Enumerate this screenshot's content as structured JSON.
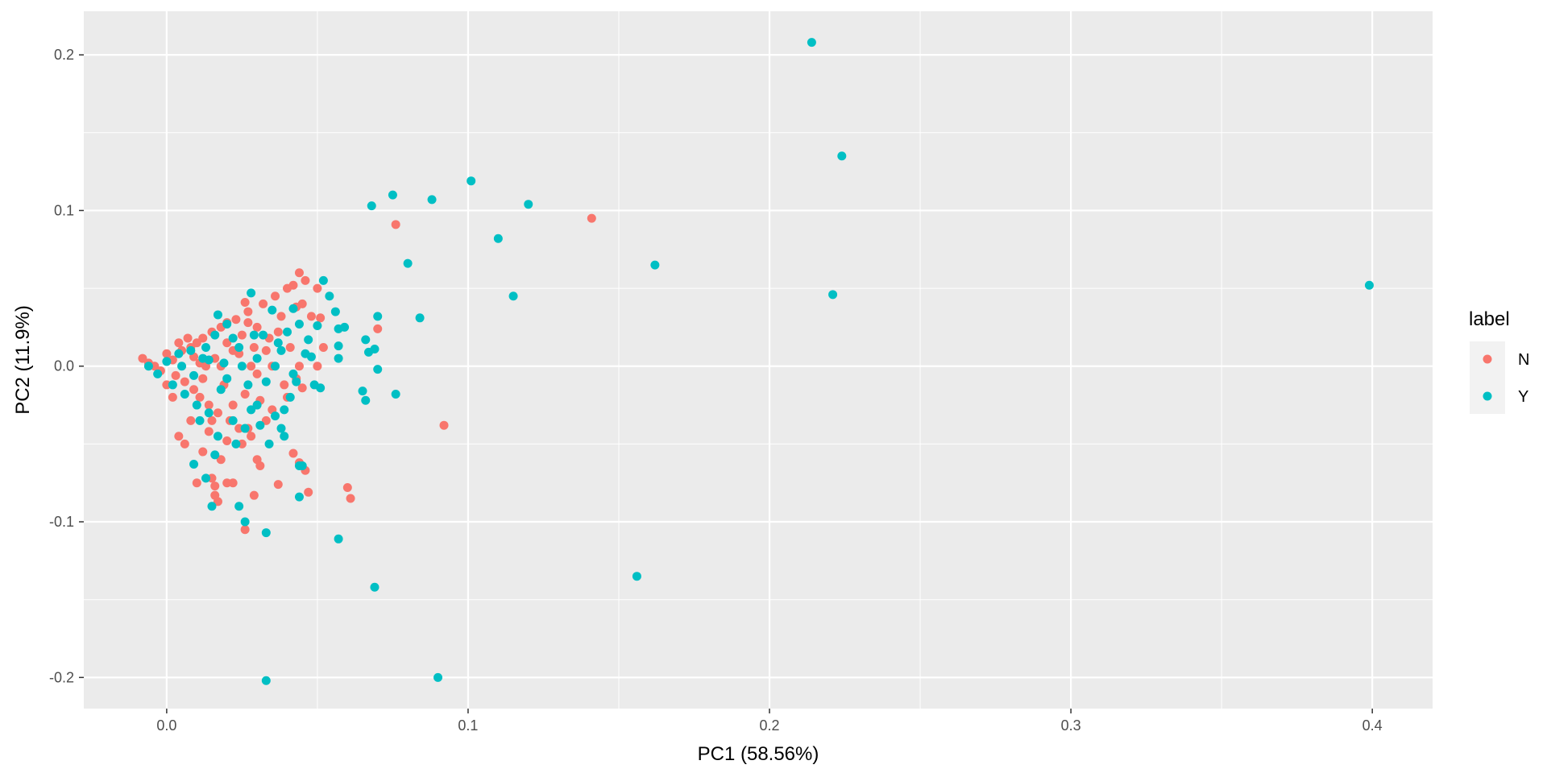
{
  "chart_data": {
    "type": "scatter",
    "xlabel": "PC1 (58.56%)",
    "ylabel": "PC2 (11.9%)",
    "xlim": [
      -0.0275,
      0.42
    ],
    "ylim": [
      -0.22,
      0.228
    ],
    "x_ticks": [
      0.0,
      0.1,
      0.2,
      0.3,
      0.4
    ],
    "x_tick_labels": [
      "0.0",
      "0.1",
      "0.2",
      "0.3",
      "0.4"
    ],
    "y_ticks": [
      0.2,
      0.1,
      0.0,
      -0.1,
      -0.2
    ],
    "y_tick_labels": [
      "0.2",
      "0.1",
      "0.0",
      "-0.1",
      "-0.2"
    ],
    "grid": true,
    "legend": {
      "title": "label",
      "position": "right"
    },
    "series": [
      {
        "name": "N",
        "color": "#F8766D",
        "points": [
          [
            -0.008,
            0.005
          ],
          [
            -0.006,
            0.002
          ],
          [
            -0.004,
            0.0
          ],
          [
            -0.002,
            -0.003
          ],
          [
            0.0,
            0.008
          ],
          [
            0.002,
            0.004
          ],
          [
            0.003,
            -0.006
          ],
          [
            0.005,
            0.01
          ],
          [
            0.006,
            -0.01
          ],
          [
            0.008,
            0.012
          ],
          [
            0.009,
            -0.015
          ],
          [
            0.01,
            0.015
          ],
          [
            0.011,
            -0.02
          ],
          [
            0.012,
            0.018
          ],
          [
            0.013,
            0.0
          ],
          [
            0.014,
            -0.025
          ],
          [
            0.015,
            0.022
          ],
          [
            0.016,
            0.005
          ],
          [
            0.017,
            -0.03
          ],
          [
            0.018,
            0.025
          ],
          [
            0.019,
            -0.012
          ],
          [
            0.02,
            0.028
          ],
          [
            0.021,
            -0.035
          ],
          [
            0.022,
            0.01
          ],
          [
            0.023,
            0.03
          ],
          [
            0.024,
            -0.04
          ],
          [
            0.025,
            0.02
          ],
          [
            0.026,
            -0.018
          ],
          [
            0.027,
            0.035
          ],
          [
            0.028,
            -0.045
          ],
          [
            0.029,
            0.012
          ],
          [
            0.03,
            0.025
          ],
          [
            0.031,
            -0.022
          ],
          [
            0.032,
            0.04
          ],
          [
            0.034,
            0.018
          ],
          [
            0.035,
            -0.028
          ],
          [
            0.036,
            0.045
          ],
          [
            0.038,
            0.032
          ],
          [
            0.04,
            0.05
          ],
          [
            0.042,
            0.052
          ],
          [
            0.043,
            0.038
          ],
          [
            0.044,
            0.06
          ],
          [
            0.045,
            0.04
          ],
          [
            0.046,
            0.055
          ],
          [
            0.048,
            0.032
          ],
          [
            0.05,
            0.05
          ],
          [
            0.051,
            0.031
          ],
          [
            0.052,
            0.012
          ],
          [
            0.05,
            0.0
          ],
          [
            0.044,
            0.0
          ],
          [
            0.043,
            -0.008
          ],
          [
            0.042,
            -0.056
          ],
          [
            0.044,
            -0.062
          ],
          [
            0.046,
            -0.067
          ],
          [
            0.047,
            -0.081
          ],
          [
            0.037,
            -0.076
          ],
          [
            0.029,
            -0.083
          ],
          [
            0.027,
            -0.04
          ],
          [
            0.03,
            -0.06
          ],
          [
            0.031,
            -0.064
          ],
          [
            0.025,
            -0.05
          ],
          [
            0.02,
            -0.048
          ],
          [
            0.018,
            -0.06
          ],
          [
            0.016,
            -0.077
          ],
          [
            0.015,
            -0.072
          ],
          [
            0.016,
            -0.083
          ],
          [
            0.017,
            -0.087
          ],
          [
            0.02,
            -0.075
          ],
          [
            0.022,
            -0.075
          ],
          [
            0.026,
            -0.105
          ],
          [
            0.006,
            -0.05
          ],
          [
            0.004,
            -0.045
          ],
          [
            0.01,
            -0.075
          ],
          [
            0.012,
            -0.055
          ],
          [
            0.014,
            -0.042
          ],
          [
            0.008,
            -0.035
          ],
          [
            0.06,
            -0.078
          ],
          [
            0.061,
            -0.085
          ],
          [
            0.07,
            0.024
          ],
          [
            0.076,
            0.091
          ],
          [
            0.141,
            0.095
          ],
          [
            0.092,
            -0.038
          ],
          [
            0.0,
            -0.012
          ],
          [
            0.002,
            -0.02
          ],
          [
            0.004,
            0.015
          ],
          [
            0.007,
            0.018
          ],
          [
            0.009,
            0.006
          ],
          [
            0.012,
            -0.008
          ],
          [
            0.018,
            0.0
          ],
          [
            0.02,
            0.015
          ],
          [
            0.024,
            0.008
          ],
          [
            0.028,
            0.0
          ],
          [
            0.033,
            0.01
          ],
          [
            0.037,
            0.022
          ],
          [
            0.039,
            -0.012
          ],
          [
            0.041,
            0.012
          ],
          [
            0.035,
            0.0
          ],
          [
            0.03,
            -0.005
          ],
          [
            0.022,
            -0.025
          ],
          [
            0.015,
            -0.035
          ],
          [
            0.011,
            0.002
          ],
          [
            0.027,
            0.028
          ],
          [
            0.033,
            -0.035
          ],
          [
            0.04,
            -0.02
          ],
          [
            0.045,
            -0.014
          ],
          [
            0.026,
            0.041
          ]
        ]
      },
      {
        "name": "Y",
        "color": "#00BFC4",
        "points": [
          [
            -0.006,
            0.0
          ],
          [
            -0.003,
            -0.005
          ],
          [
            0.0,
            0.003
          ],
          [
            0.002,
            -0.012
          ],
          [
            0.004,
            0.008
          ],
          [
            0.006,
            -0.018
          ],
          [
            0.008,
            0.01
          ],
          [
            0.01,
            -0.025
          ],
          [
            0.012,
            0.005
          ],
          [
            0.014,
            -0.03
          ],
          [
            0.016,
            0.02
          ],
          [
            0.018,
            -0.015
          ],
          [
            0.02,
            0.027
          ],
          [
            0.022,
            -0.035
          ],
          [
            0.024,
            0.012
          ],
          [
            0.026,
            -0.04
          ],
          [
            0.028,
            0.047
          ],
          [
            0.03,
            -0.025
          ],
          [
            0.032,
            0.02
          ],
          [
            0.034,
            -0.05
          ],
          [
            0.035,
            0.036
          ],
          [
            0.036,
            -0.032
          ],
          [
            0.038,
            0.01
          ],
          [
            0.039,
            -0.045
          ],
          [
            0.04,
            0.022
          ],
          [
            0.041,
            -0.02
          ],
          [
            0.042,
            0.037
          ],
          [
            0.043,
            -0.01
          ],
          [
            0.044,
            0.027
          ],
          [
            0.045,
            -0.064
          ],
          [
            0.046,
            0.008
          ],
          [
            0.048,
            0.006
          ],
          [
            0.05,
            0.026
          ],
          [
            0.051,
            -0.014
          ],
          [
            0.052,
            0.055
          ],
          [
            0.054,
            0.045
          ],
          [
            0.056,
            0.035
          ],
          [
            0.057,
            0.024
          ],
          [
            0.057,
            0.013
          ],
          [
            0.057,
            0.005
          ],
          [
            0.059,
            0.025
          ],
          [
            0.065,
            -0.016
          ],
          [
            0.066,
            -0.022
          ],
          [
            0.066,
            0.017
          ],
          [
            0.067,
            0.009
          ],
          [
            0.069,
            0.011
          ],
          [
            0.07,
            0.032
          ],
          [
            0.07,
            -0.002
          ],
          [
            0.076,
            -0.018
          ],
          [
            0.084,
            0.031
          ],
          [
            0.08,
            0.066
          ],
          [
            0.068,
            0.103
          ],
          [
            0.075,
            0.11
          ],
          [
            0.088,
            0.107
          ],
          [
            0.101,
            0.119
          ],
          [
            0.11,
            0.082
          ],
          [
            0.115,
            0.045
          ],
          [
            0.12,
            0.104
          ],
          [
            0.162,
            0.065
          ],
          [
            0.214,
            0.208
          ],
          [
            0.224,
            0.135
          ],
          [
            0.221,
            0.046
          ],
          [
            0.399,
            0.052
          ],
          [
            0.156,
            -0.135
          ],
          [
            0.057,
            -0.111
          ],
          [
            0.069,
            -0.142
          ],
          [
            0.033,
            -0.107
          ],
          [
            0.026,
            -0.1
          ],
          [
            0.024,
            -0.09
          ],
          [
            0.015,
            -0.09
          ],
          [
            0.013,
            -0.072
          ],
          [
            0.009,
            -0.063
          ],
          [
            0.044,
            -0.084
          ],
          [
            0.044,
            -0.064
          ],
          [
            0.033,
            -0.202
          ],
          [
            0.09,
            -0.2
          ],
          [
            0.016,
            -0.057
          ],
          [
            0.011,
            -0.035
          ],
          [
            0.02,
            -0.008
          ],
          [
            0.025,
            0.0
          ],
          [
            0.03,
            0.005
          ],
          [
            0.036,
            0.0
          ],
          [
            0.033,
            -0.01
          ],
          [
            0.038,
            -0.04
          ],
          [
            0.028,
            -0.028
          ],
          [
            0.019,
            0.002
          ],
          [
            0.017,
            -0.045
          ],
          [
            0.013,
            0.012
          ],
          [
            0.005,
            0.0
          ],
          [
            0.009,
            -0.006
          ],
          [
            0.022,
            0.018
          ],
          [
            0.027,
            -0.012
          ],
          [
            0.031,
            -0.038
          ],
          [
            0.037,
            0.015
          ],
          [
            0.042,
            -0.005
          ],
          [
            0.029,
            0.02
          ],
          [
            0.023,
            -0.05
          ],
          [
            0.017,
            0.033
          ],
          [
            0.014,
            0.004
          ],
          [
            0.047,
            0.017
          ],
          [
            0.049,
            -0.012
          ],
          [
            0.039,
            -0.028
          ]
        ]
      }
    ]
  }
}
